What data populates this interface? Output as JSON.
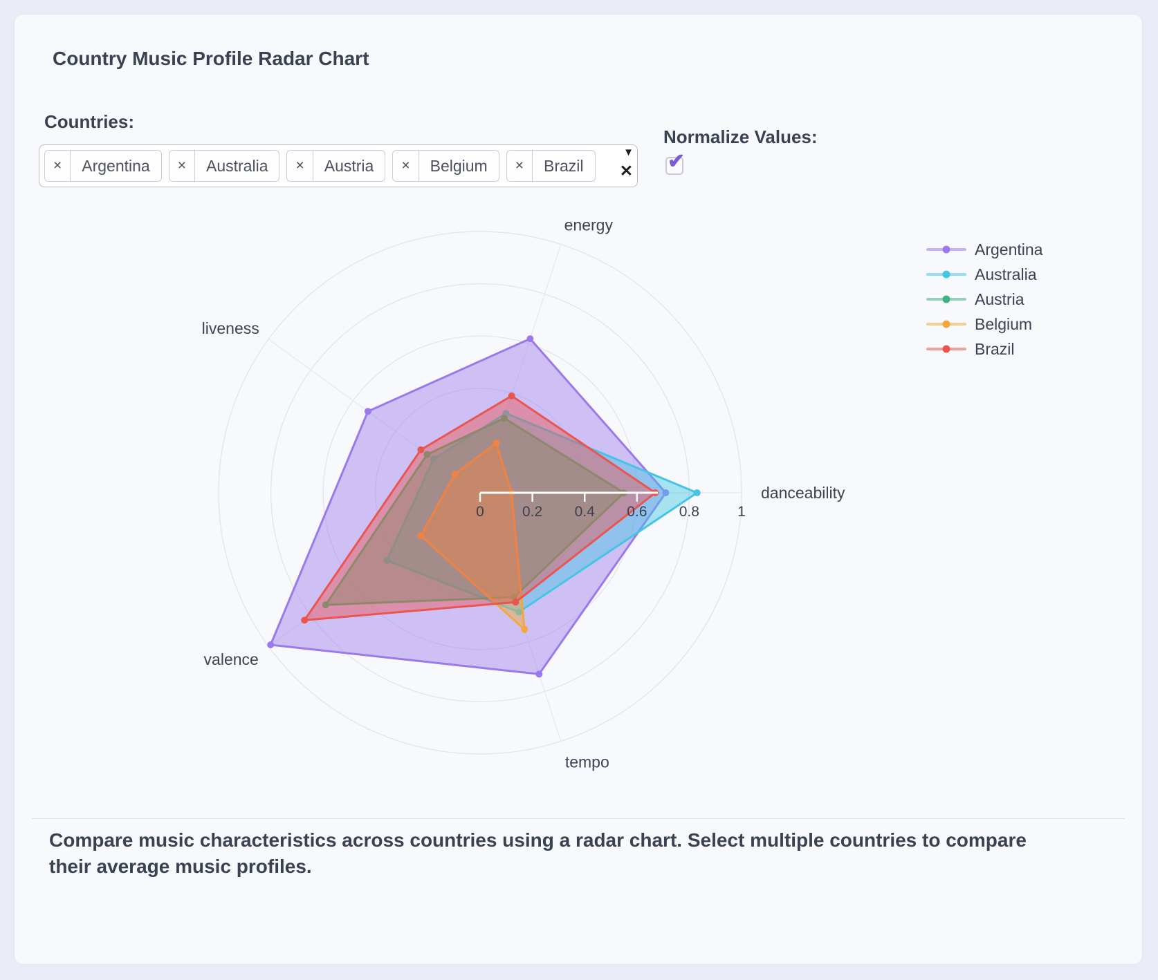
{
  "title": "Country Music Profile Radar Chart",
  "controls": {
    "countries_label": "Countries:",
    "selected_countries": [
      "Argentina",
      "Australia",
      "Austria",
      "Belgium",
      "Brazil"
    ],
    "remove_symbol": "×",
    "dropdown_symbol": "▼",
    "clear_symbol": "✕",
    "normalize_label": "Normalize Values:",
    "normalize_checked": true,
    "checkmark": "✔"
  },
  "chart_data": {
    "type": "radar",
    "axes": [
      "danceability",
      "energy",
      "liveness",
      "valence",
      "tempo"
    ],
    "ticks": [
      0,
      0.2,
      0.4,
      0.6,
      0.8,
      1
    ],
    "tick_labels": [
      "0",
      "0.2",
      "0.4",
      "0.6",
      "0.8",
      "1"
    ],
    "range": [
      0,
      1
    ],
    "grid": true,
    "legend_position": "right",
    "fill_opacity": 0.45,
    "series": [
      {
        "name": "Argentina",
        "color": "#9b79ec",
        "values": [
          0.71,
          0.62,
          0.53,
          0.99,
          0.73
        ]
      },
      {
        "name": "Australia",
        "color": "#45c5e5",
        "values": [
          0.83,
          0.32,
          0.22,
          0.44,
          0.48
        ]
      },
      {
        "name": "Austria",
        "color": "#3fb27f",
        "values": [
          0.55,
          0.3,
          0.25,
          0.73,
          0.42
        ]
      },
      {
        "name": "Belgium",
        "color": "#f2a93b",
        "values": [
          0.12,
          0.2,
          0.12,
          0.28,
          0.55
        ]
      },
      {
        "name": "Brazil",
        "color": "#ea5550",
        "values": [
          0.67,
          0.39,
          0.28,
          0.83,
          0.44
        ]
      }
    ]
  },
  "footer": "Compare music characteristics across countries using a radar chart. Select multiple countries to compare their average music profiles."
}
